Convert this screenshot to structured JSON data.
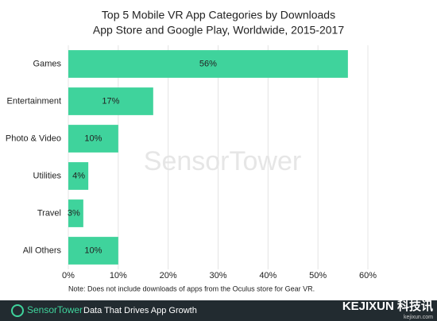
{
  "chart_data": {
    "type": "bar",
    "orientation": "horizontal",
    "title": "Top 5 Mobile VR App Categories by Downloads",
    "subtitle": "App Store and Google Play, Worldwide, 2015-2017",
    "categories": [
      "Games",
      "Entertainment",
      "Photo & Video",
      "Utilities",
      "Travel",
      "All Others"
    ],
    "values": [
      56,
      17,
      10,
      4,
      3,
      10
    ],
    "value_labels": [
      "56%",
      "17%",
      "10%",
      "4%",
      "3%",
      "10%"
    ],
    "color": "#3fd39c",
    "xlim": [
      0,
      60
    ],
    "xticks": [
      {
        "value": 0,
        "label": "0%"
      },
      {
        "value": 10,
        "label": "10%"
      },
      {
        "value": 20,
        "label": "20%"
      },
      {
        "value": 30,
        "label": "30%"
      },
      {
        "value": 40,
        "label": "40%"
      },
      {
        "value": 50,
        "label": "50%"
      },
      {
        "value": 60,
        "label": "60%"
      }
    ],
    "grid": true,
    "note": "Note: Does not include downloads of apps from the Oculus store for Gear VR."
  },
  "watermark": "SensorTower",
  "footer": {
    "brand": "SensorTower",
    "tagline": "Data That Drives App Growth",
    "site_logo": "KEJIXUN 科技讯",
    "site_url": "kejixun.com"
  }
}
